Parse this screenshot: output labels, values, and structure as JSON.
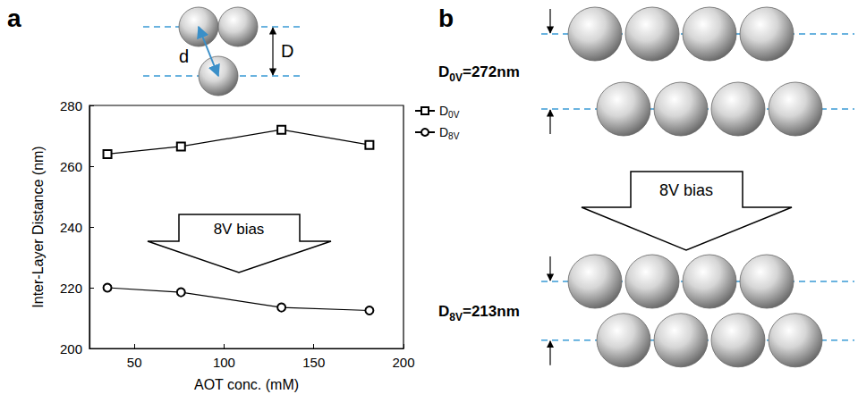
{
  "panel_labels": [
    "a",
    "b"
  ],
  "diagram_a": {
    "center_distance_label": "d",
    "layer_distance_label": "D"
  },
  "chart_data": {
    "type": "line",
    "x_label": "AOT conc. (mM)",
    "y_label": "Inter-Layer Distance (nm)",
    "x": [
      35,
      76,
      132,
      181
    ],
    "series": [
      {
        "name": "D0V",
        "color": "#000000",
        "marker": "square",
        "values": [
          264,
          266.5,
          272,
          267
        ]
      },
      {
        "name": "D8V",
        "color": "#000000",
        "marker": "circle",
        "values": [
          220,
          218.5,
          213.5,
          212.5
        ]
      }
    ],
    "xlim": [
      25,
      200
    ],
    "xticks": [
      50,
      100,
      150,
      200
    ],
    "ylim": [
      200,
      280
    ],
    "yticks": [
      200,
      220,
      240,
      260,
      280
    ],
    "grid": false,
    "legend": "right",
    "annotations": [
      {
        "text": "8V bias"
      }
    ]
  },
  "diagram_b": {
    "states": [
      {
        "symbol": "D",
        "subscript": "0V",
        "relation": "=",
        "value": 272,
        "unit": "nm"
      },
      {
        "symbol": "D",
        "subscript": "8V",
        "relation": "=",
        "value": 213,
        "unit": "nm"
      }
    ],
    "arrow_text": "8V bias"
  }
}
